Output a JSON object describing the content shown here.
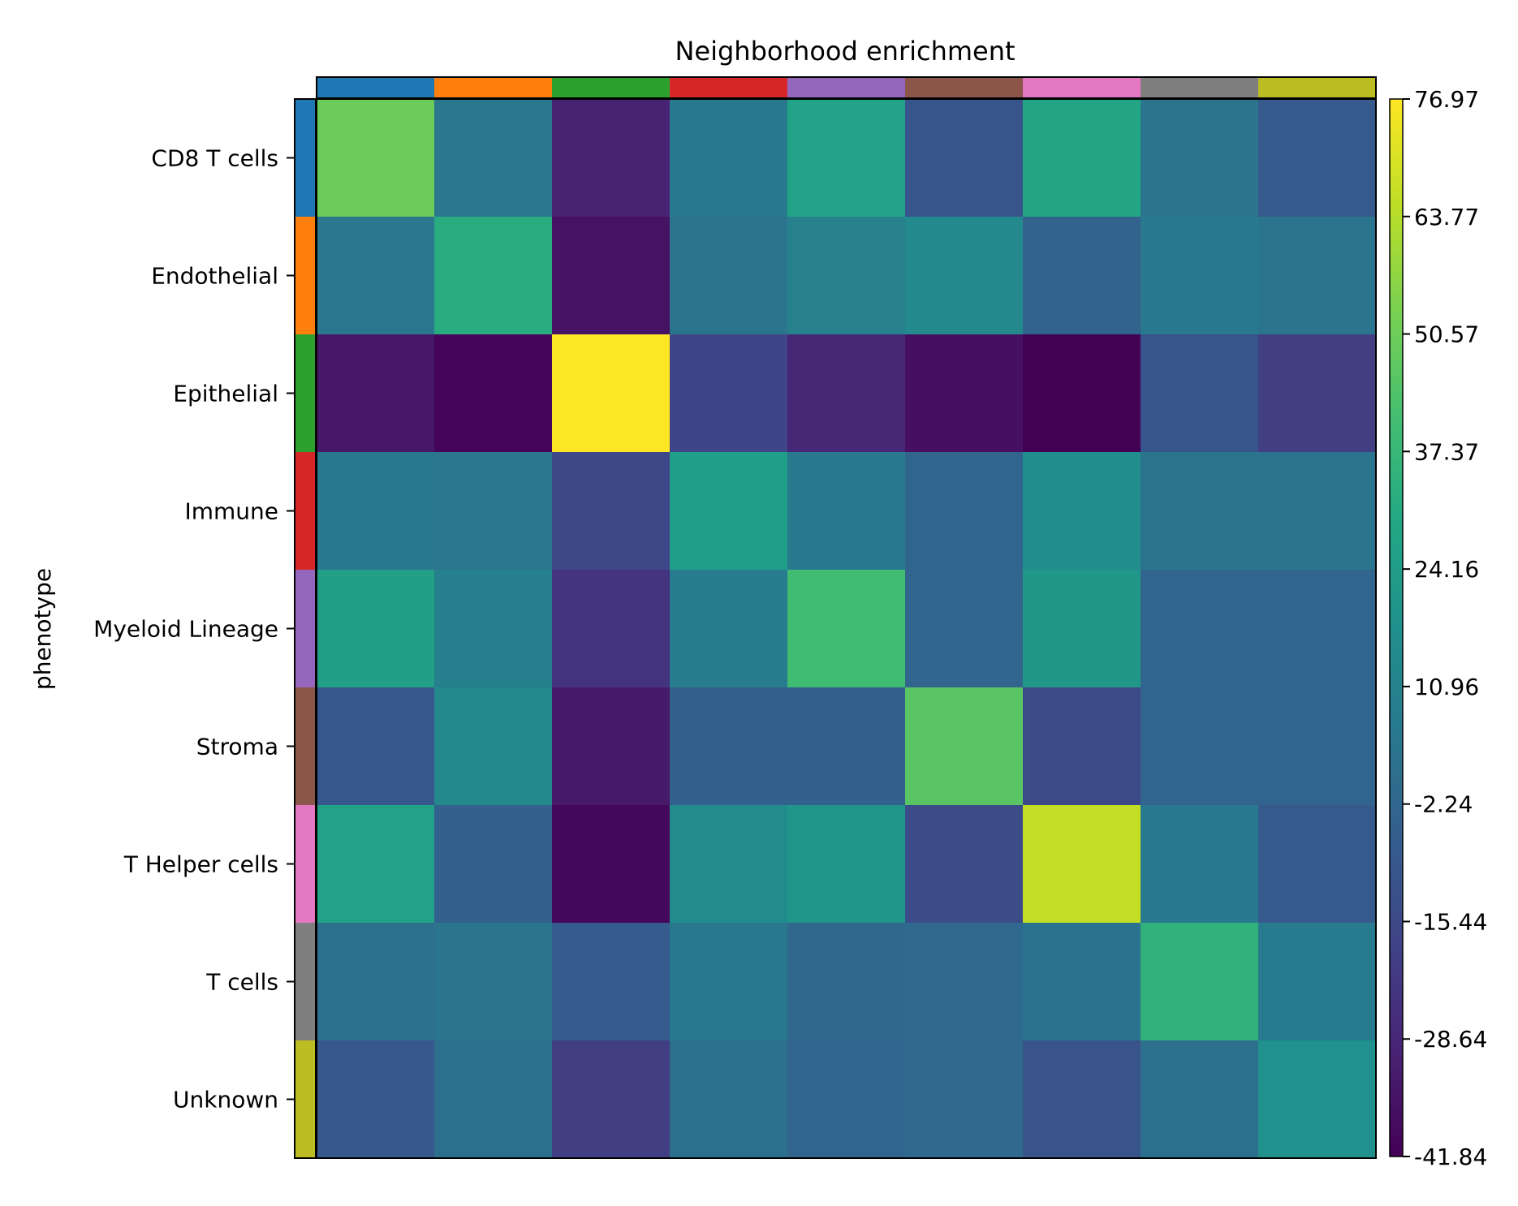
{
  "chart_data": {
    "type": "heatmap",
    "title": "Neighborhood enrichment",
    "ylabel": "phenotype",
    "rows": [
      "CD8 T cells",
      "Endothelial",
      "Epithelial",
      "Immune",
      "Myeloid Lineage",
      "Stroma",
      "T Helper cells",
      "T cells",
      "Unknown"
    ],
    "group_colors": [
      "#1f77b4",
      "#ff7f0e",
      "#2ca02c",
      "#d62728",
      "#9467bd",
      "#8c564b",
      "#e377c2",
      "#7f7f7f",
      "#bcbd22"
    ],
    "values": [
      [
        50,
        5,
        -30,
        6,
        27,
        -10,
        28,
        4,
        -8
      ],
      [
        5,
        32,
        -36,
        4,
        10,
        14,
        -4,
        6,
        4
      ],
      [
        -34,
        -40,
        77,
        -17,
        -28,
        -37,
        -42,
        -10,
        -20
      ],
      [
        6,
        5,
        -16,
        25,
        6,
        -3,
        16,
        4,
        4
      ],
      [
        26,
        9,
        -24,
        8,
        40,
        -3,
        21,
        -3,
        -3
      ],
      [
        -9,
        14,
        -33,
        -5,
        -5,
        46,
        -15,
        -3,
        -3
      ],
      [
        27,
        -5,
        -39,
        15,
        20,
        -14,
        66,
        6,
        -8
      ],
      [
        2,
        4,
        -7,
        6,
        -2,
        -1,
        3,
        35,
        7
      ],
      [
        -9,
        2,
        -20,
        2,
        -3,
        -1,
        -11,
        2,
        18
      ]
    ],
    "colorbar": {
      "min": -41.84,
      "max": 76.97,
      "ticks": [
        "76.97",
        "63.77",
        "50.57",
        "37.37",
        "24.16",
        "10.96",
        "-2.24",
        "-15.44",
        "-28.64",
        "-41.84"
      ],
      "colormap": "viridis"
    },
    "grid": false
  }
}
